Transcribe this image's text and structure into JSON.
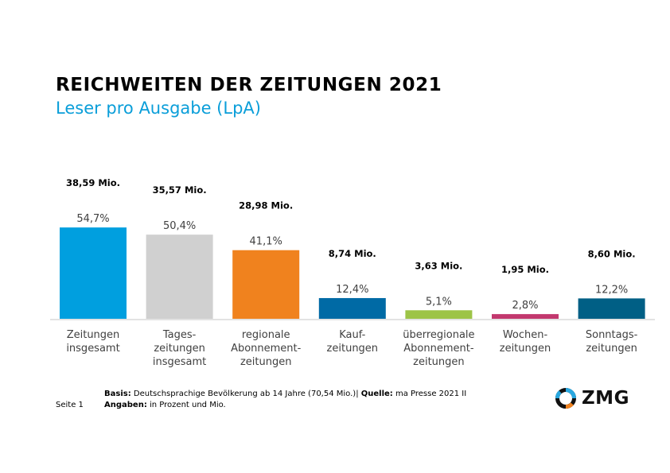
{
  "header": {
    "title": "REICHWEITEN DER ZEITUNGEN 2021",
    "subtitle": "Leser pro Ausgabe (LpA)"
  },
  "chart_data": {
    "type": "bar",
    "title": "REICHWEITEN DER ZEITUNGEN 2021",
    "subtitle": "Leser pro Ausgabe (LpA)",
    "xlabel": "",
    "ylabel": "",
    "ylim": [
      0,
      60
    ],
    "grid": false,
    "categories": [
      [
        "Zeitungen",
        "insgesamt"
      ],
      [
        "Tages-",
        "zeitungen",
        "insgesamt"
      ],
      [
        "regionale",
        "Abonnement-",
        "zeitungen"
      ],
      [
        "Kauf-",
        "zeitungen"
      ],
      [
        "überregionale",
        "Abonnement-",
        "zeitungen"
      ],
      [
        "Wochen-",
        "zeitungen"
      ],
      [
        "Sonntags-",
        "zeitungen"
      ]
    ],
    "values": [
      54.7,
      50.4,
      41.1,
      12.4,
      5.1,
      2.8,
      12.2
    ],
    "value_labels": [
      "54,7%",
      "50,4%",
      "41,1%",
      "12,4%",
      "5,1%",
      "2,8%",
      "12,2%"
    ],
    "million_labels": [
      "38,59 Mio.",
      "35,57 Mio.",
      "28,98 Mio.",
      "8,74 Mio.",
      "3,63 Mio.",
      "1,95 Mio.",
      "8,60 Mio."
    ],
    "millions": [
      38.59,
      35.57,
      28.98,
      8.74,
      3.63,
      1.95,
      8.6
    ],
    "colors": [
      "#009fdf",
      "#d0d0d0",
      "#f0821e",
      "#006aa5",
      "#9dc447",
      "#c2386e",
      "#005f85"
    ]
  },
  "footer": {
    "page_label": "Seite 1",
    "basis_label": "Basis:",
    "basis_text": " Deutschsprachige Bevölkerung ab 14 Jahre (70,54 Mio.)| ",
    "source_label": "Quelle:",
    "source_text": " ma Presse 2021 II",
    "info_label": "Angaben:",
    "info_text": " in Prozent und Mio."
  },
  "logo": {
    "text": "ZMG",
    "icon": "zmg-ring-icon"
  }
}
